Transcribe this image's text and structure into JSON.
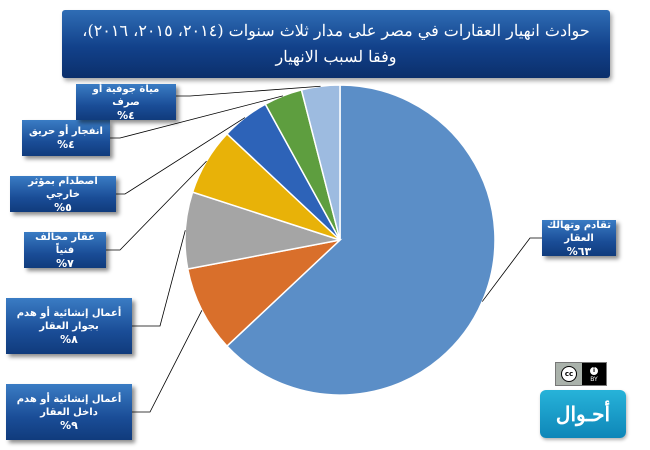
{
  "title": {
    "line1": "حوادث انهيار العقارات في مصر على مدار ثلاث سنوات (٢٠١٤، ٢٠١٥، ٢٠١٦)،",
    "line2": "وفقا لسبب الانهيار"
  },
  "chart_data": {
    "type": "pie",
    "title": "حوادث انهيار العقارات في مصر على مدار ثلاث سنوات (٢٠١٤، ٢٠١٥، ٢٠١٦)، وفقا لسبب الانهيار",
    "categories": [
      "تقادم وتهالك العقار",
      "أعمال إنشائية أو هدم داخل العقار",
      "أعمال إنشائية أو هدم بجوار العقار",
      "عقار مخالف فنياً",
      "اصطدام بمؤثر خارجي",
      "انفجار أو حريق",
      "مياة جوفية أو صرف"
    ],
    "values": [
      63,
      9,
      8,
      7,
      5,
      4,
      4
    ],
    "value_labels": [
      "٦٣%",
      "٩%",
      "٨%",
      "٧%",
      "٥%",
      "٤%",
      "٤%"
    ],
    "colors": [
      "#5b8ec7",
      "#d96f2b",
      "#a5a5a5",
      "#e8b208",
      "#2d63b8",
      "#5e9e3f",
      "#9dbbe0"
    ],
    "legend": "none"
  },
  "badge": {
    "cc": "cc",
    "by": "BY",
    "info": "i"
  },
  "logo": {
    "text": "أحـوال"
  }
}
